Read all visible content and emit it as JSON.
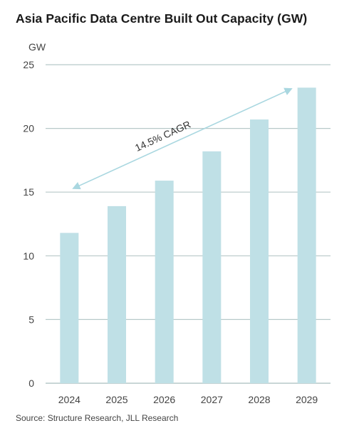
{
  "chart_data": {
    "type": "bar",
    "title": "Asia Pacific Data Centre Built Out Capacity (GW)",
    "ylabel": "GW",
    "xlabel": "",
    "categories": [
      "2024",
      "2025",
      "2026",
      "2027",
      "2028",
      "2029"
    ],
    "values": [
      11.8,
      13.9,
      15.9,
      18.2,
      20.7,
      23.2
    ],
    "ylim": [
      0,
      25
    ],
    "yticks": [
      0,
      5,
      10,
      15,
      20,
      25
    ],
    "grid": "horizontal",
    "bar_color": "#bfe0e6",
    "grid_color": "#b7c9c9",
    "annotation": {
      "text": "14.5% CAGR",
      "arrow_color": "#a9d7e0"
    },
    "source": "Source: Structure Research, JLL Research"
  }
}
